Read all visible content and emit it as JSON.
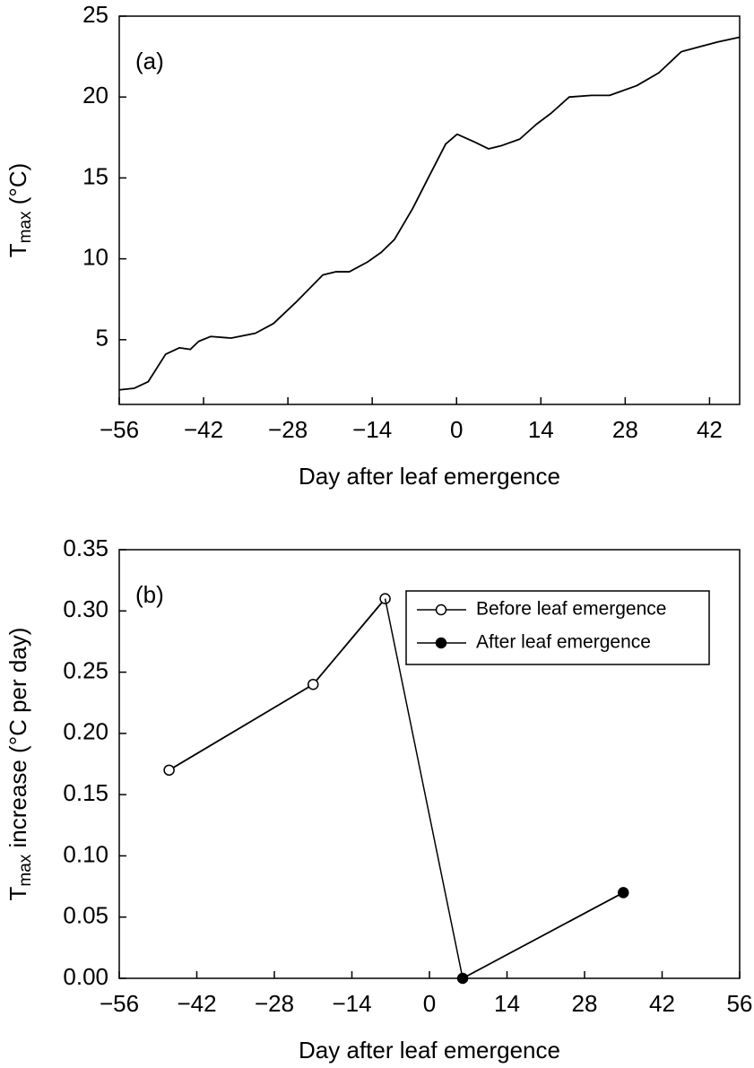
{
  "chart_data": [
    {
      "type": "line",
      "annotation": "(a)",
      "xlabel": "Day after leaf emergence",
      "ylabel": {
        "main": "T",
        "sub": "max",
        "rest": " (°C)"
      },
      "xlim": [
        -56,
        47
      ],
      "ylim": [
        1,
        25
      ],
      "xticks": [
        {
          "value": -56,
          "label": "−56"
        },
        {
          "value": -42,
          "label": "−42"
        },
        {
          "value": -28,
          "label": "−28"
        },
        {
          "value": -14,
          "label": "−14"
        },
        0,
        14,
        28,
        42
      ],
      "yticks": [
        5,
        10,
        15,
        20,
        25
      ],
      "series": [
        {
          "color": "#000000",
          "x": [
            -56,
            -53.5,
            -51.2,
            -48.3,
            -46,
            -44.2,
            -42.8,
            -40.8,
            -37.4,
            -33.4,
            -30.4,
            -26.7,
            -22.2,
            -20,
            -17.8,
            -14.8,
            -12.5,
            -10.3,
            -7.3,
            -4.7,
            -1.8,
            0.1,
            3.1,
            5.3,
            7.5,
            10.5,
            13.2,
            15.7,
            18.7,
            22.4,
            25.4,
            29.9,
            33.6,
            37.3,
            40.3,
            43.3,
            47
          ],
          "values": [
            1.9,
            2.0,
            2.4,
            4.1,
            4.5,
            4.4,
            4.9,
            5.2,
            5.1,
            5.4,
            6.0,
            7.3,
            9.0,
            9.2,
            9.2,
            9.8,
            10.4,
            11.2,
            13.1,
            15.0,
            17.1,
            17.7,
            17.2,
            16.8,
            17.0,
            17.4,
            18.3,
            19.0,
            20.0,
            20.1,
            20.1,
            20.7,
            21.5,
            22.8,
            23.1,
            23.4,
            23.7
          ]
        }
      ]
    },
    {
      "type": "line",
      "annotation": "(b)",
      "xlabel": "Day after leaf emergence",
      "ylabel": {
        "main": "T",
        "sub": "max",
        "rest": " increase (°C per day)"
      },
      "xlim": [
        -56,
        56
      ],
      "ylim": [
        0,
        0.35
      ],
      "xticks": [
        {
          "value": -56,
          "label": "−56"
        },
        {
          "value": -42,
          "label": "−42"
        },
        {
          "value": -28,
          "label": "−28"
        },
        {
          "value": -14,
          "label": "−14"
        },
        0,
        14,
        28,
        42,
        56
      ],
      "yticks": [
        {
          "value": 0,
          "label": "0.00"
        },
        {
          "value": 0.05,
          "label": "0.05"
        },
        {
          "value": 0.1,
          "label": "0.10"
        },
        0.15,
        {
          "value": 0.2,
          "label": "0.20"
        },
        0.25,
        {
          "value": 0.3,
          "label": "0.30"
        },
        0.35
      ],
      "legend": "upper right",
      "series": [
        {
          "name": "Before leaf emergence",
          "color": "#000000",
          "marker": "open",
          "x": [
            -47,
            -21,
            -8
          ],
          "values": [
            0.17,
            0.24,
            0.31
          ]
        },
        {
          "name": "After leaf emergence",
          "color": "#000000",
          "marker": "filled",
          "x": [
            6,
            35
          ],
          "values": [
            0,
            0.07
          ]
        }
      ]
    }
  ]
}
